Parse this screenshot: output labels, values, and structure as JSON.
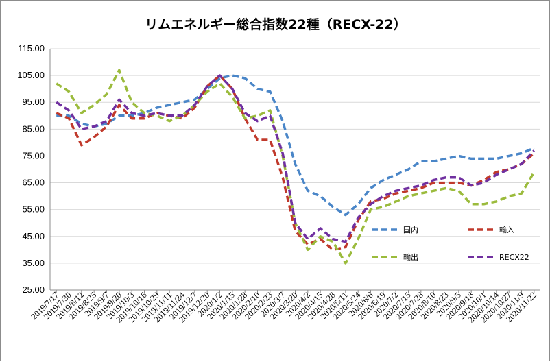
{
  "chart_data": {
    "type": "line",
    "title": "リムエネルギー総合指数22種（RECX-22）",
    "xlabel": "",
    "ylabel": "",
    "ylim": [
      25,
      115
    ],
    "yticks": [
      "25.00",
      "35.00",
      "45.00",
      "55.00",
      "65.00",
      "75.00",
      "85.00",
      "95.00",
      "105.00",
      "115.00"
    ],
    "grid": "horizontal",
    "legend_position": "inside-lower-right",
    "categories": [
      "2019/7/17",
      "2019/7/30",
      "2019/8/12",
      "2019/8/25",
      "2019/9/7",
      "2019/9/20",
      "2019/10/3",
      "2019/10/16",
      "2019/10/29",
      "2019/11/11",
      "2019/11/24",
      "2019/12/7",
      "2019/12/20",
      "2020/1/2",
      "2020/1/15",
      "2020/1/28",
      "2020/2/10",
      "2020/2/23",
      "2020/3/7",
      "2020/3/20",
      "2020/4/2",
      "2020/4/15",
      "2020/4/28",
      "2020/5/11",
      "2020/5/24",
      "2020/6/6",
      "2020/6/19",
      "2020/7/2",
      "2020/7/15",
      "2020/7/28",
      "2020/8/10",
      "2020/8/23",
      "2020/9/5",
      "2020/9/18",
      "2020/10/1",
      "2020/10/14",
      "2020/10/27",
      "2020/11/9",
      "2020/11/22"
    ],
    "series": [
      {
        "name": "国内",
        "color": "#4a86c8",
        "values": [
          90,
          90,
          87,
          86,
          87,
          90,
          90,
          91,
          93,
          94,
          95,
          96,
          100,
          104,
          105,
          104,
          100,
          99,
          88,
          72,
          62,
          60,
          56,
          53,
          57,
          63,
          66,
          68,
          70,
          73,
          73,
          74,
          75,
          74,
          74,
          74,
          75,
          76,
          78
        ]
      },
      {
        "name": "輸入",
        "color": "#c0392b",
        "values": [
          91,
          89,
          79,
          82,
          86,
          94,
          89,
          89,
          91,
          90,
          89,
          93,
          101,
          105,
          100,
          89,
          81,
          81,
          67,
          47,
          42,
          44,
          40,
          41,
          51,
          58,
          59,
          61,
          62,
          63,
          65,
          65,
          65,
          64,
          66,
          69,
          70,
          72,
          76
        ]
      },
      {
        "name": "輸出",
        "color": "#9bbb3c",
        "values": [
          102,
          99,
          91,
          94,
          98,
          107,
          95,
          91,
          90,
          88,
          90,
          94,
          99,
          102,
          97,
          89,
          90,
          92,
          75,
          50,
          40,
          45,
          43,
          35,
          44,
          55,
          56,
          58,
          60,
          61,
          62,
          63,
          62,
          57,
          57,
          58,
          60,
          61,
          69
        ]
      },
      {
        "name": "RECX22",
        "color": "#7030a0",
        "values": [
          95,
          92,
          85,
          86,
          88,
          96,
          91,
          90,
          91,
          90,
          90,
          94,
          101,
          105,
          100,
          91,
          88,
          90,
          76,
          50,
          44,
          48,
          44,
          43,
          52,
          57,
          60,
          62,
          63,
          64,
          66,
          67,
          67,
          64,
          65,
          68,
          70,
          72,
          77
        ]
      }
    ]
  }
}
